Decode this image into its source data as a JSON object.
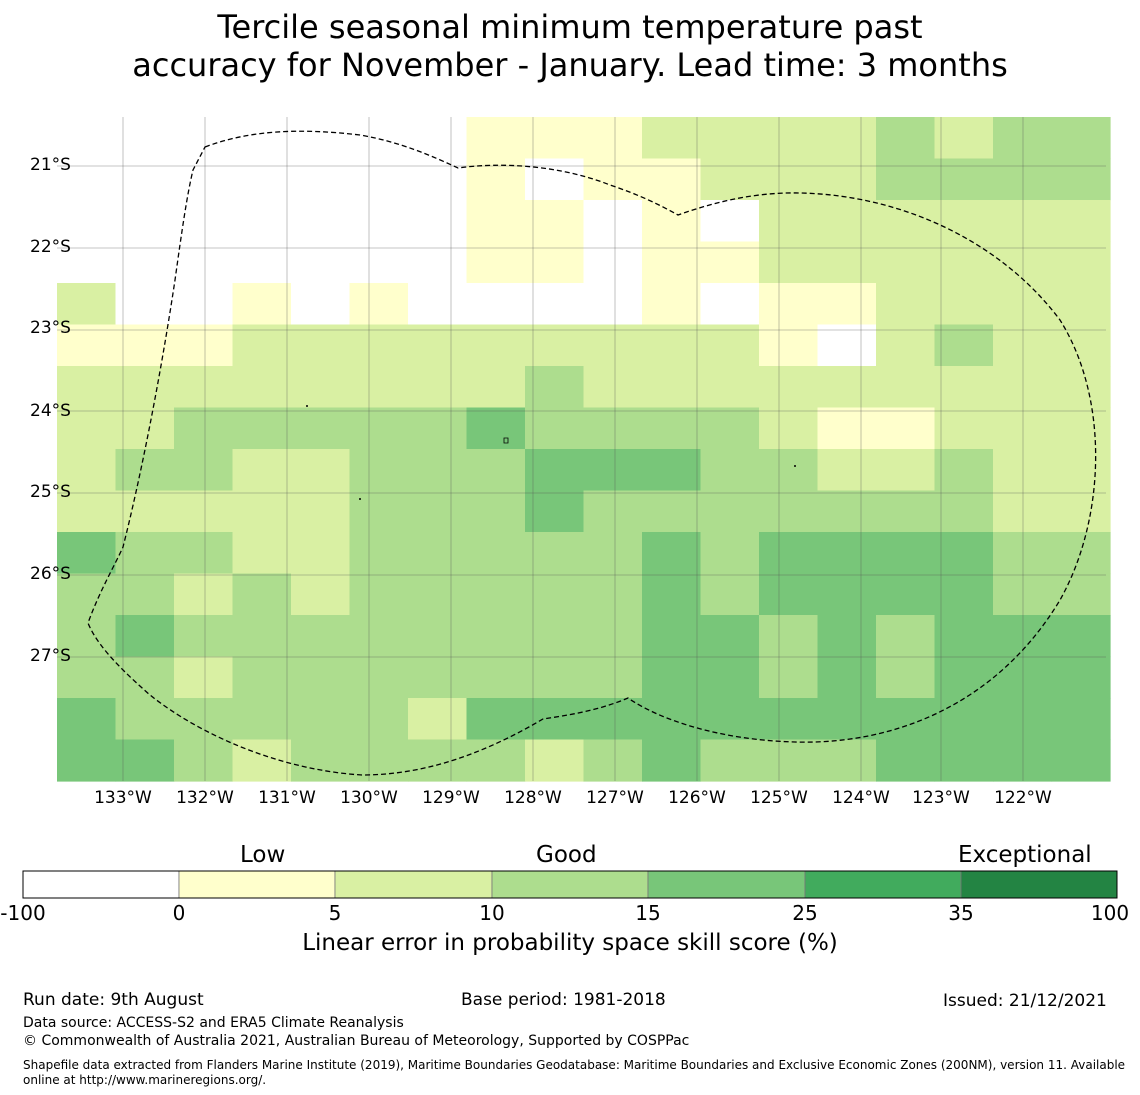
{
  "title": {
    "line1": "Tercile seasonal minimum temperature past",
    "line2": "accuracy for November - January. Lead time: 3 months"
  },
  "map": {
    "lat_labels": [
      "21°S",
      "22°S",
      "23°S",
      "24°S",
      "25°S",
      "26°S",
      "27°S"
    ],
    "lon_labels": [
      "133°W",
      "132°W",
      "131°W",
      "130°W",
      "129°W",
      "128°W",
      "127°W",
      "126°W",
      "125°W",
      "124°W",
      "123°W",
      "122°W"
    ],
    "lat_range": [
      "20.4°S",
      "28.5°S"
    ],
    "lon_range": [
      "133.8°W",
      "121°W"
    ],
    "category_colors": [
      "#ffffff",
      "#ffffcc",
      "#d9f0a3",
      "#addd8e",
      "#78c679",
      "#41ab5d",
      "#238443"
    ],
    "grid_levels": [
      [
        1,
        1,
        1,
        1,
        1,
        1,
        1,
        1,
        1,
        1,
        1,
        1,
        1,
        1,
        1,
        1,
        1,
        1,
        1,
        1,
        1,
        1,
        1,
        1,
        1,
        1,
        1,
        1,
        1,
        1,
        1,
        1,
        1,
        1,
        1,
        1,
        1,
        1,
        1,
        1,
        1,
        1,
        1,
        1,
        1,
        1,
        1,
        1,
        1,
        1,
        1,
        1,
        1,
        1,
        1,
        1,
        1,
        1,
        1,
        1,
        1,
        1,
        1,
        1,
        1,
        1,
        1,
        1,
        1,
        1,
        1,
        1,
        1,
        1,
        1,
        1,
        1,
        1,
        1,
        1,
        1,
        1,
        1,
        1,
        1,
        1,
        1,
        1,
        1,
        1,
        1,
        1,
        1,
        1,
        1,
        1,
        1,
        1,
        1,
        1,
        1,
        1,
        1,
        1,
        1,
        1,
        1,
        1,
        1,
        1,
        1,
        1,
        1,
        1,
        1,
        1,
        1,
        1,
        1,
        1
      ]
    ],
    "cells": [
      [
        0,
        0,
        0,
        0,
        0,
        0,
        0,
        1,
        1,
        1,
        2,
        2,
        2,
        2,
        3,
        2,
        3,
        3
      ],
      [
        0,
        0,
        0,
        0,
        0,
        0,
        0,
        1,
        0,
        1,
        1,
        2,
        2,
        2,
        3,
        3,
        3,
        3
      ],
      [
        0,
        0,
        0,
        0,
        0,
        0,
        0,
        1,
        1,
        0,
        1,
        0,
        2,
        2,
        2,
        2,
        2,
        2
      ],
      [
        0,
        0,
        0,
        0,
        0,
        0,
        0,
        1,
        1,
        0,
        1,
        1,
        2,
        2,
        2,
        2,
        2,
        2
      ],
      [
        2,
        0,
        0,
        1,
        0,
        1,
        0,
        0,
        0,
        0,
        1,
        0,
        1,
        1,
        2,
        2,
        2,
        2
      ],
      [
        1,
        1,
        1,
        2,
        2,
        2,
        2,
        2,
        2,
        2,
        2,
        2,
        1,
        0,
        2,
        3,
        2,
        2
      ],
      [
        2,
        2,
        2,
        2,
        2,
        2,
        2,
        2,
        3,
        2,
        2,
        2,
        2,
        2,
        2,
        2,
        2,
        2
      ],
      [
        2,
        2,
        3,
        3,
        3,
        3,
        3,
        4,
        3,
        3,
        3,
        3,
        2,
        1,
        1,
        2,
        2,
        2
      ],
      [
        2,
        3,
        3,
        2,
        2,
        3,
        3,
        3,
        4,
        4,
        4,
        3,
        3,
        2,
        2,
        3,
        2,
        2
      ],
      [
        2,
        2,
        2,
        2,
        2,
        3,
        3,
        3,
        4,
        3,
        3,
        3,
        3,
        3,
        3,
        3,
        2,
        2
      ],
      [
        4,
        3,
        3,
        2,
        2,
        3,
        3,
        3,
        3,
        3,
        4,
        3,
        4,
        4,
        4,
        4,
        3,
        3
      ],
      [
        3,
        3,
        2,
        3,
        2,
        3,
        3,
        3,
        3,
        3,
        4,
        3,
        4,
        4,
        4,
        4,
        3,
        3
      ],
      [
        3,
        4,
        3,
        3,
        3,
        3,
        3,
        3,
        3,
        3,
        4,
        4,
        3,
        4,
        3,
        4,
        4,
        4
      ],
      [
        3,
        3,
        2,
        3,
        3,
        3,
        3,
        3,
        3,
        3,
        4,
        4,
        3,
        4,
        3,
        4,
        4,
        4
      ],
      [
        4,
        3,
        3,
        3,
        3,
        3,
        2,
        4,
        4,
        4,
        4,
        4,
        4,
        4,
        4,
        4,
        4,
        4
      ],
      [
        4,
        4,
        3,
        2,
        3,
        3,
        3,
        3,
        2,
        3,
        4,
        3,
        3,
        3,
        4,
        4,
        4,
        4
      ]
    ]
  },
  "colorbar": {
    "headings": {
      "low": "Low",
      "good": "Good",
      "exceptional": "Exceptional"
    },
    "ticks": [
      "-100",
      "0",
      "5",
      "10",
      "15",
      "25",
      "35",
      "100"
    ],
    "label": "Linear error in probability space skill score (%)"
  },
  "footer": {
    "run_date": "Run date: 9th August",
    "base_period": "Base period: 1981-2018",
    "issued": "Issued: 21/12/2021",
    "data_source": "Data source: ACCESS-S2 and ERA5 Climate Reanalysis",
    "copyright": "© Commonwealth of Australia 2021, Australian Bureau of Meteorology, Supported by COSPPac",
    "shapefile_line1": "Shapefile data extracted from Flanders Marine Institute (2019), Maritime Boundaries Geodatabase: Maritime Boundaries and Exclusive Economic Zones (200NM), version 11. Available",
    "shapefile_line2": "online at http://www.marineregions.org/."
  }
}
